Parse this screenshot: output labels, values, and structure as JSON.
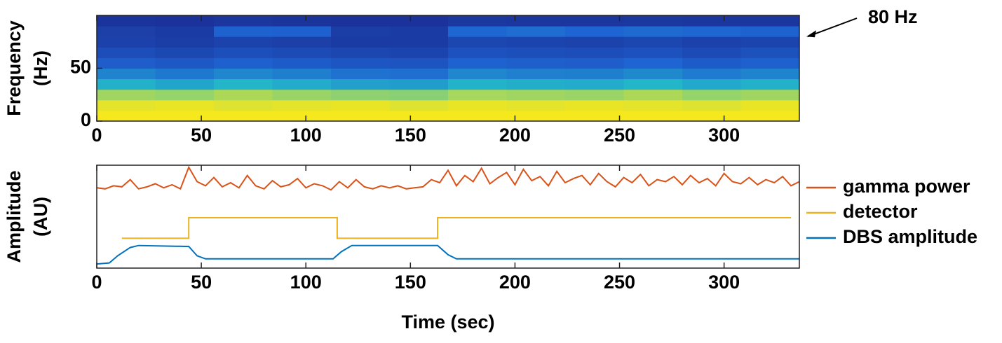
{
  "chart_data": [
    {
      "type": "heatmap",
      "ylabel": [
        "Frequency",
        "(Hz)"
      ],
      "time_edges": [
        0,
        28,
        56,
        84,
        112,
        140,
        168,
        196,
        224,
        252,
        280,
        308,
        336
      ],
      "freq_edges": [
        0,
        10,
        20,
        30,
        40,
        50,
        60,
        70,
        80,
        90,
        100
      ],
      "z": [
        [
          1,
          1,
          1,
          1,
          1,
          1,
          1,
          1,
          1,
          1,
          1,
          1
        ],
        [
          0.97,
          0.98,
          0.96,
          0.97,
          0.98,
          0.96,
          0.98,
          0.97,
          0.98,
          0.97,
          0.96,
          0.98
        ],
        [
          0.86,
          0.84,
          0.88,
          0.85,
          0.83,
          0.82,
          0.87,
          0.86,
          0.85,
          0.88,
          0.84,
          0.86
        ],
        [
          0.62,
          0.58,
          0.64,
          0.6,
          0.56,
          0.55,
          0.63,
          0.61,
          0.6,
          0.64,
          0.59,
          0.62
        ],
        [
          0.46,
          0.42,
          0.47,
          0.44,
          0.4,
          0.39,
          0.47,
          0.45,
          0.44,
          0.48,
          0.43,
          0.46
        ],
        [
          0.31,
          0.28,
          0.33,
          0.3,
          0.27,
          0.26,
          0.34,
          0.32,
          0.31,
          0.35,
          0.3,
          0.33
        ],
        [
          0.22,
          0.19,
          0.23,
          0.21,
          0.18,
          0.17,
          0.25,
          0.23,
          0.22,
          0.25,
          0.21,
          0.24
        ],
        [
          0.15,
          0.13,
          0.16,
          0.14,
          0.12,
          0.12,
          0.18,
          0.17,
          0.16,
          0.18,
          0.15,
          0.17
        ],
        [
          0.14,
          0.12,
          0.34,
          0.33,
          0.13,
          0.12,
          0.36,
          0.38,
          0.35,
          0.37,
          0.36,
          0.34
        ],
        [
          0.08,
          0.07,
          0.09,
          0.08,
          0.07,
          0.07,
          0.1,
          0.09,
          0.09,
          0.1,
          0.09,
          0.09
        ]
      ],
      "clim": [
        0,
        1
      ],
      "xlim": [
        0,
        336
      ],
      "xticks": [
        0,
        50,
        100,
        150,
        200,
        250,
        300
      ],
      "ylim": [
        0,
        100
      ],
      "yticks": [
        0,
        50
      ],
      "annotation": {
        "text": "80 Hz",
        "y": 80
      }
    },
    {
      "type": "line",
      "xlabel": "Time (sec)",
      "ylabel": [
        "Amplitude",
        "(AU)"
      ],
      "xlim": [
        0,
        336
      ],
      "xticks": [
        0,
        50,
        100,
        150,
        200,
        250,
        300
      ],
      "ylim": [
        0,
        1
      ],
      "series": [
        {
          "name": "gamma power",
          "color": "#d95319",
          "x": [
            0,
            4,
            8,
            12,
            16,
            20,
            24,
            28,
            32,
            36,
            40,
            44,
            48,
            52,
            56,
            60,
            64,
            68,
            72,
            76,
            80,
            84,
            88,
            92,
            96,
            100,
            104,
            108,
            112,
            116,
            120,
            124,
            128,
            132,
            136,
            140,
            144,
            148,
            152,
            156,
            160,
            164,
            168,
            172,
            176,
            180,
            184,
            188,
            192,
            196,
            200,
            204,
            208,
            212,
            216,
            220,
            224,
            228,
            232,
            236,
            240,
            244,
            248,
            252,
            256,
            260,
            264,
            268,
            272,
            276,
            280,
            284,
            288,
            292,
            296,
            300,
            304,
            308,
            312,
            316,
            320,
            324,
            328,
            332,
            336
          ],
          "values": [
            0.78,
            0.77,
            0.8,
            0.79,
            0.86,
            0.77,
            0.79,
            0.82,
            0.78,
            0.81,
            0.77,
            0.98,
            0.84,
            0.8,
            0.88,
            0.79,
            0.83,
            0.78,
            0.9,
            0.8,
            0.77,
            0.85,
            0.79,
            0.81,
            0.87,
            0.78,
            0.82,
            0.8,
            0.76,
            0.84,
            0.78,
            0.86,
            0.79,
            0.77,
            0.8,
            0.78,
            0.8,
            0.77,
            0.78,
            0.79,
            0.86,
            0.83,
            0.95,
            0.8,
            0.9,
            0.84,
            0.97,
            0.82,
            0.88,
            0.93,
            0.81,
            0.96,
            0.85,
            0.89,
            0.8,
            0.94,
            0.83,
            0.87,
            0.9,
            0.81,
            0.92,
            0.84,
            0.79,
            0.88,
            0.83,
            0.91,
            0.8,
            0.86,
            0.84,
            0.89,
            0.81,
            0.9,
            0.83,
            0.87,
            0.8,
            0.92,
            0.84,
            0.82,
            0.88,
            0.81,
            0.86,
            0.83,
            0.89,
            0.8,
            0.84
          ]
        },
        {
          "name": "detector",
          "color": "#edb120",
          "x": [
            12,
            44,
            44,
            115,
            115,
            163,
            163,
            332
          ],
          "values": [
            0.29,
            0.29,
            0.49,
            0.49,
            0.29,
            0.29,
            0.49,
            0.49
          ]
        },
        {
          "name": "DBS amplitude",
          "color": "#0072bd",
          "x": [
            0,
            6,
            10,
            16,
            20,
            44,
            48,
            52,
            113,
            117,
            122,
            163,
            168,
            172,
            336
          ],
          "values": [
            0.04,
            0.05,
            0.12,
            0.2,
            0.22,
            0.21,
            0.12,
            0.09,
            0.09,
            0.16,
            0.22,
            0.22,
            0.13,
            0.09,
            0.09
          ]
        }
      ]
    }
  ]
}
